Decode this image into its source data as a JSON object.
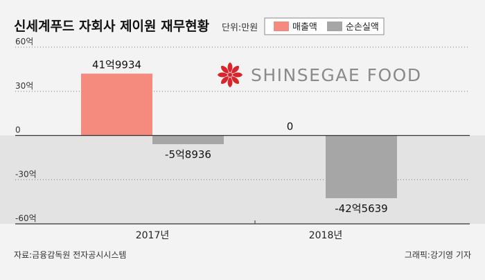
{
  "header": {
    "title": "신세계푸드 자회사 제이원 재무현황",
    "unit": "단위:만원"
  },
  "logo": {
    "text": "SHINSEGAE FOOD",
    "icon": "red-star-flower-icon"
  },
  "footer": {
    "source": "자료:금융감독원 전자공시시스템",
    "credit": "그래픽:강기영 기자"
  },
  "colors": {
    "sales": "#f58a7e",
    "net_loss": "#a6a6a6",
    "negative_band": "#e3e3e3",
    "logo_red": "#d9242b"
  },
  "chart_data": {
    "type": "bar",
    "unit": "만원",
    "categories": [
      "2017년",
      "2018년"
    ],
    "series": [
      {
        "name": "매출액",
        "values": [
          419934,
          0
        ],
        "labels": [
          "41억9934",
          "0"
        ]
      },
      {
        "name": "순손실액",
        "values": [
          -58936,
          -425639
        ],
        "labels": [
          "-5억8936",
          "-42억5639"
        ]
      }
    ],
    "yticks": [
      {
        "value": 600000,
        "label": "60억"
      },
      {
        "value": 300000,
        "label": "30억"
      },
      {
        "value": 0,
        "label": "0"
      },
      {
        "value": -300000,
        "label": "-30억"
      },
      {
        "value": -600000,
        "label": "-60억"
      }
    ],
    "ylim": [
      -600000,
      600000
    ],
    "legend_position": "top"
  }
}
